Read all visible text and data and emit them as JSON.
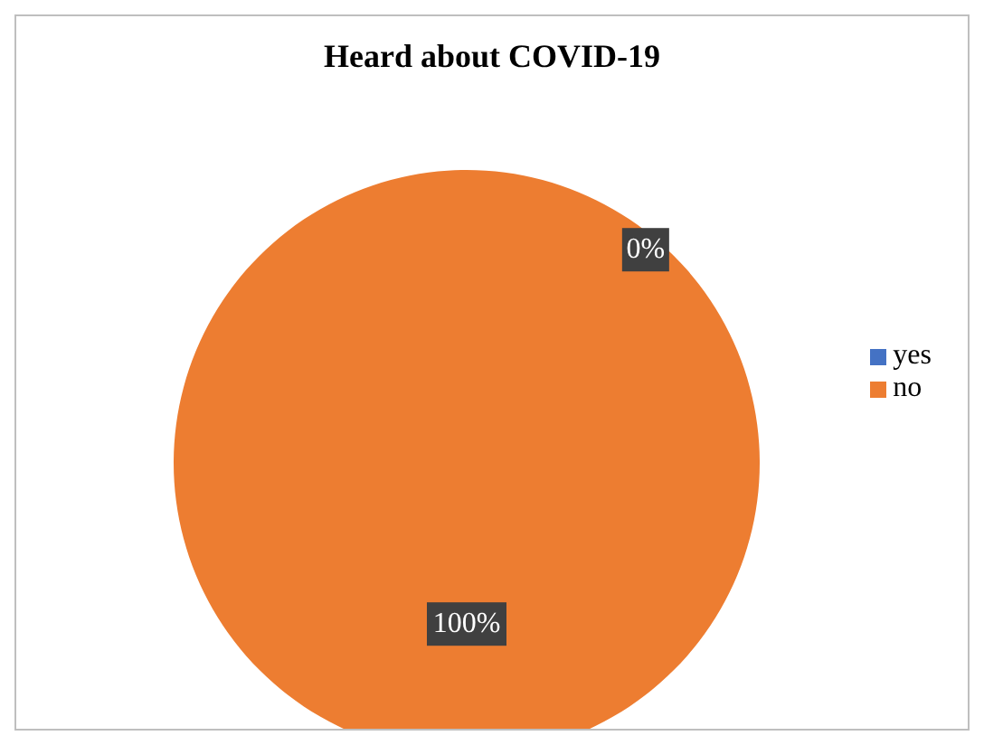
{
  "chart_data": {
    "type": "pie",
    "title": "Heard about COVID-19",
    "categories": [
      "yes",
      "no"
    ],
    "values": [
      0,
      100
    ],
    "colors": [
      "#4472c4",
      "#ed7d31"
    ],
    "value_labels": [
      "0%",
      "100%"
    ],
    "legend": "right"
  }
}
